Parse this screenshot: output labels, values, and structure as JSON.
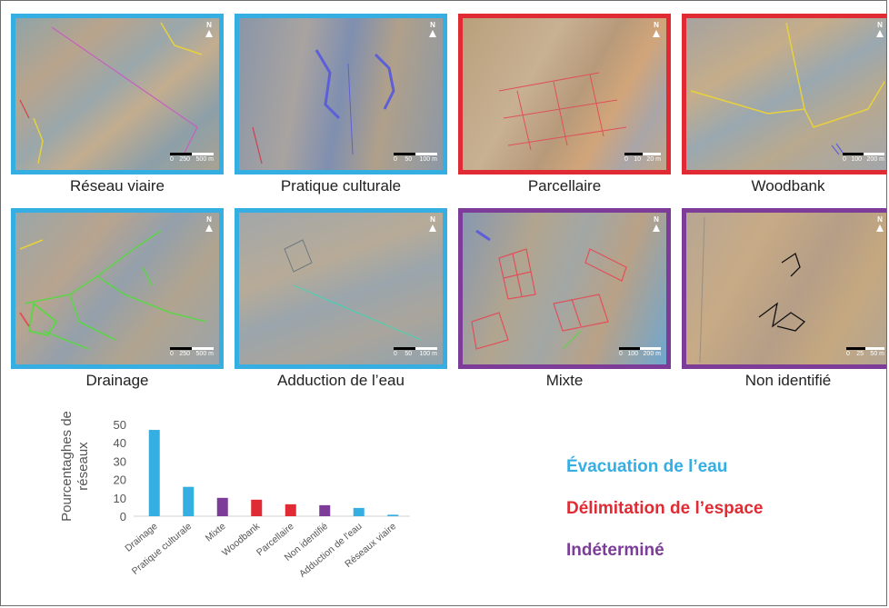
{
  "panels": [
    {
      "caption": "Réseau viaire",
      "category": "evacuation",
      "scale_labels": [
        "0",
        "250",
        "500 m"
      ]
    },
    {
      "caption": "Pratique culturale",
      "category": "evacuation",
      "scale_labels": [
        "0",
        "50",
        "100 m"
      ]
    },
    {
      "caption": "Parcellaire",
      "category": "delimitation",
      "scale_labels": [
        "0",
        "10",
        "20 m"
      ]
    },
    {
      "caption": "Woodbank",
      "category": "delimitation",
      "scale_labels": [
        "0",
        "100",
        "200 m"
      ]
    },
    {
      "caption": "Drainage",
      "category": "evacuation",
      "scale_labels": [
        "0",
        "250",
        "500 m"
      ]
    },
    {
      "caption": "Adduction de l’eau",
      "category": "evacuation",
      "scale_labels": [
        "0",
        "50",
        "100 m"
      ]
    },
    {
      "caption": "Mixte",
      "category": "indetermine",
      "scale_labels": [
        "0",
        "100",
        "200 m"
      ]
    },
    {
      "caption": "Non identifié",
      "category": "indetermine",
      "scale_labels": [
        "0",
        "25",
        "50 m"
      ]
    }
  ],
  "north_label": "N",
  "legend": {
    "evacuation": {
      "label": "Évacuation de l’eau",
      "color": "#35aee2"
    },
    "delimitation": {
      "label": "Délimitation de l’espace",
      "color": "#e02b35"
    },
    "indetermine": {
      "label": "Indéterminé",
      "color": "#7c3c98"
    }
  },
  "chart_data": {
    "type": "bar",
    "title": "",
    "xlabel": "",
    "ylabel": "Pourcentaghes de réseaux",
    "ylabel_lines": [
      "Pourcentaghes de",
      "réseaux"
    ],
    "ylim": [
      0,
      50
    ],
    "yticks": [
      0,
      10,
      20,
      30,
      40,
      50
    ],
    "grid": false,
    "categories": [
      "Drainage",
      "Pratique culturale",
      "Mixte",
      "Woodbank",
      "Parcellaire",
      "Non identifié",
      "Adduction de l'eau",
      "Réseaux viaire"
    ],
    "values": [
      47,
      16,
      10,
      9,
      6.5,
      6,
      4.5,
      0.8
    ],
    "colors": [
      "#35aee2",
      "#35aee2",
      "#7c3c98",
      "#e02b35",
      "#e02b35",
      "#7c3c98",
      "#35aee2",
      "#35aee2"
    ]
  }
}
